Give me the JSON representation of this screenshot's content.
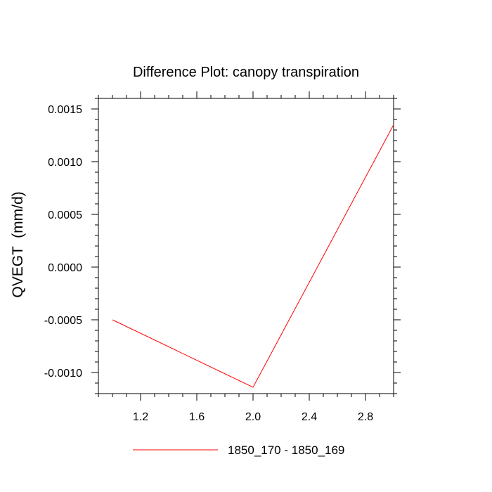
{
  "chart_data": {
    "type": "line",
    "title": "Difference Plot: canopy transpiration",
    "xlabel": "",
    "ylabel": "QVEGT  (mm/d)",
    "xlim": [
      0.9,
      3.0
    ],
    "ylim": [
      -0.0012,
      0.0016
    ],
    "xticks": [
      1.2,
      1.6,
      2.0,
      2.4,
      2.8
    ],
    "xtick_labels": [
      "1.2",
      "1.6",
      "2.0",
      "2.4",
      "2.8"
    ],
    "yticks": [
      -0.001,
      -0.0005,
      0.0,
      0.0005,
      0.001,
      0.0015
    ],
    "ytick_labels": [
      "-0.0010",
      "-0.0005",
      "0.0000",
      "0.0005",
      "0.0010",
      "0.0015"
    ],
    "grid": false,
    "legend_position": "bottom",
    "series": [
      {
        "name": "1850_170 - 1850_169",
        "color": "#ff0000",
        "x": [
          1.0,
          2.0,
          3.0
        ],
        "y": [
          -0.0005,
          -0.00114,
          0.00135
        ]
      }
    ]
  }
}
